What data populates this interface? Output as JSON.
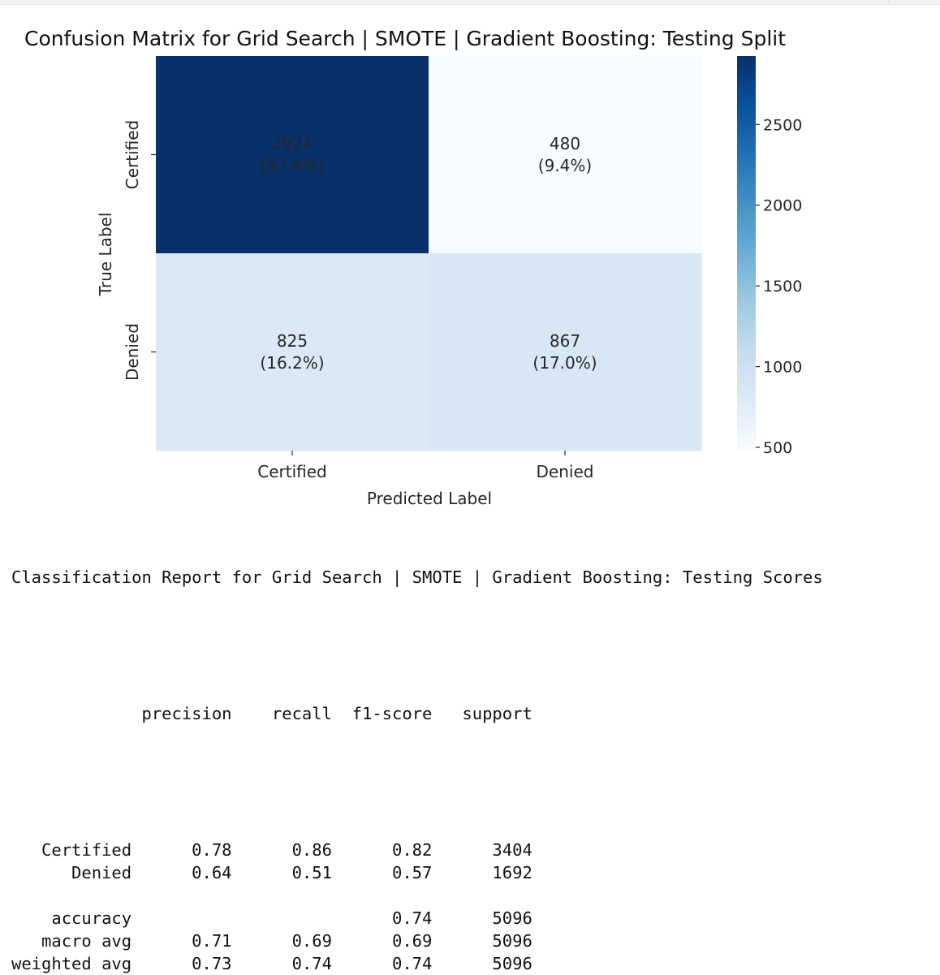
{
  "chart_data": {
    "type": "heatmap",
    "title": "Confusion Matrix for Grid Search | SMOTE | Gradient Boosting: Testing Split",
    "xlabel": "Predicted Label",
    "ylabel": "True Label",
    "x_categories": [
      "Certified",
      "Denied"
    ],
    "y_categories": [
      "Certified",
      "Denied"
    ],
    "values": [
      [
        2924,
        480
      ],
      [
        825,
        867
      ]
    ],
    "annotations": [
      [
        "(57.4%)",
        "(9.4%)"
      ],
      [
        "(16.2%)",
        "(17.0%)"
      ]
    ],
    "colormap": "Blues",
    "colorbar": {
      "range": [
        480,
        2924
      ],
      "ticks": [
        500,
        1000,
        1500,
        2000,
        2500
      ]
    }
  },
  "report": {
    "title": "Classification Report for Grid Search | SMOTE | Gradient Boosting: Testing Scores",
    "header": [
      "",
      "precision",
      "recall",
      "f1-score",
      "support"
    ],
    "rows": [
      [
        "Certified",
        "0.78",
        "0.86",
        "0.82",
        "3404"
      ],
      [
        "Denied",
        "0.64",
        "0.51",
        "0.57",
        "1692"
      ],
      [],
      [
        "accuracy",
        "",
        "",
        "0.74",
        "5096"
      ],
      [
        "macro avg",
        "0.71",
        "0.69",
        "0.69",
        "5096"
      ],
      [
        "weighted avg",
        "0.73",
        "0.74",
        "0.74",
        "5096"
      ]
    ]
  }
}
